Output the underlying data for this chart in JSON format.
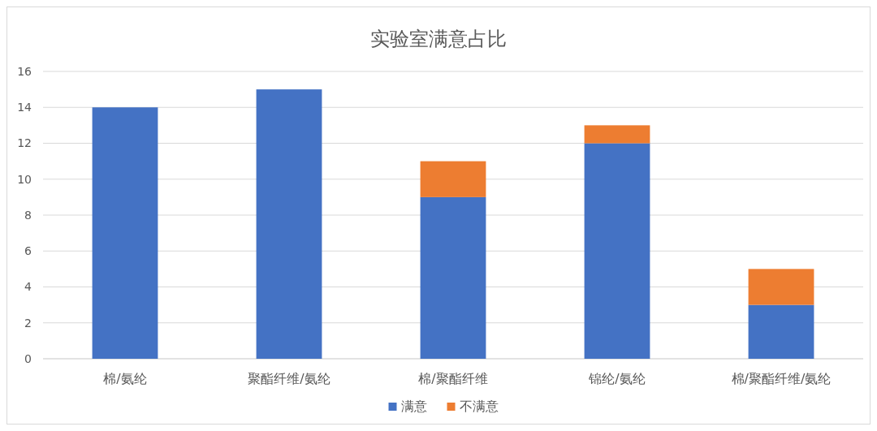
{
  "chart_data": {
    "type": "bar",
    "title": "实验室满意占比",
    "categories": [
      "棉/氨纶",
      "聚酯纤维/氨纶",
      "棉/聚酯纤维",
      "锦纶/氨纶",
      "棉/聚酯纤维/氨纶"
    ],
    "series": [
      {
        "name": "满意",
        "color": "#4472c4",
        "values": [
          14,
          15,
          9,
          12,
          3
        ]
      },
      {
        "name": "不满意",
        "color": "#ed7d31",
        "values": [
          0,
          0,
          2,
          1,
          2
        ]
      }
    ],
    "stacked": true,
    "ylim": [
      0,
      16
    ],
    "yticks": [
      0,
      2,
      4,
      6,
      8,
      10,
      12,
      14,
      16
    ],
    "grid": "y",
    "legend": "bottom"
  }
}
